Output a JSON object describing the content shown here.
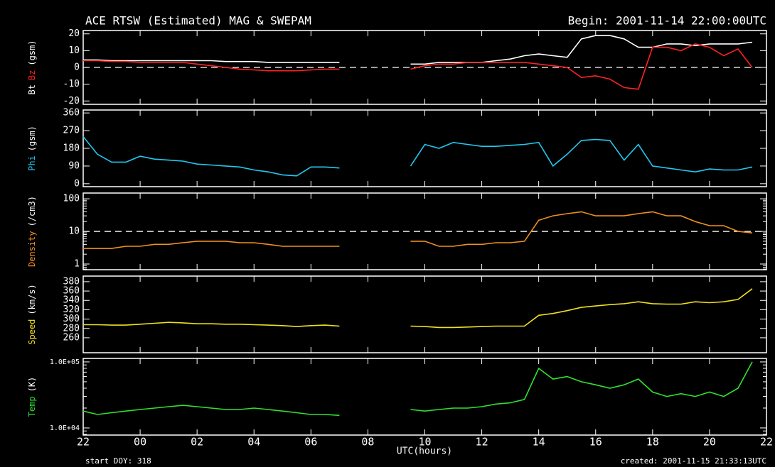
{
  "header": {
    "title": "ACE RTSW (Estimated) MAG & SWEPAM",
    "begin": "Begin: 2001-11-14 22:00:00UTC",
    "start_doy": "start DOY: 318",
    "created": "created: 2001-11-15 21:33:13UTC"
  },
  "chart_data": [
    {
      "type": "line",
      "ylabel": "(gsm)",
      "ylim": [
        -22,
        22
      ],
      "yticks": [
        -20,
        -10,
        0,
        10,
        20
      ],
      "hlines": [
        0
      ],
      "series": [
        {
          "name": "Bt",
          "color": "#ffffff",
          "values": [
            4.5,
            4.5,
            4,
            4,
            4,
            4,
            4,
            4,
            4,
            4,
            3.5,
            3.5,
            3.5,
            3,
            3,
            3,
            3,
            3,
            3,
            null,
            null,
            null,
            null,
            2,
            2,
            3,
            3,
            3,
            3,
            4,
            5,
            7,
            8,
            7,
            6,
            17,
            19,
            19,
            17,
            12,
            12,
            14,
            14,
            13,
            14,
            14,
            14,
            15
          ]
        },
        {
          "name": "Bz",
          "color": "#ff2020",
          "values": [
            4,
            4,
            3.5,
            3.5,
            3,
            3,
            3,
            3,
            2,
            1,
            0,
            -1,
            -1.5,
            -2,
            -2,
            -2,
            -1.5,
            -1,
            -1,
            null,
            null,
            null,
            null,
            -1,
            1,
            2,
            2,
            3,
            3,
            3,
            3,
            3,
            2,
            1,
            0,
            -6,
            -5,
            -7,
            -12,
            -13,
            12,
            12,
            10,
            14,
            12,
            7,
            11,
            0
          ]
        }
      ]
    },
    {
      "type": "line",
      "ylabel": "(gsm)",
      "ylim": [
        -15,
        375
      ],
      "yticks": [
        0,
        90,
        180,
        270,
        360
      ],
      "series": [
        {
          "name": "Phi",
          "color": "#22c8f0",
          "values": [
            240,
            150,
            110,
            110,
            140,
            125,
            120,
            115,
            100,
            95,
            90,
            85,
            70,
            60,
            45,
            40,
            85,
            85,
            80,
            null,
            null,
            null,
            null,
            90,
            200,
            180,
            210,
            200,
            190,
            190,
            195,
            200,
            210,
            90,
            150,
            220,
            225,
            220,
            120,
            200,
            90,
            80,
            70,
            60,
            75,
            70,
            70,
            85
          ]
        }
      ]
    },
    {
      "type": "line",
      "ylabel": "(/cm3)",
      "log": true,
      "ylim": [
        0.67,
        150
      ],
      "yticks": [
        1,
        10,
        100
      ],
      "hlines": [
        10
      ],
      "series": [
        {
          "name": "Density",
          "color": "#f09020",
          "values": [
            3,
            3,
            3,
            3.5,
            3.5,
            4,
            4,
            4.5,
            5,
            5,
            5,
            4.5,
            4.5,
            4,
            3.5,
            3.5,
            3.5,
            3.5,
            3.5,
            null,
            null,
            null,
            null,
            5,
            5,
            3.5,
            3.5,
            4,
            4,
            4.5,
            4.5,
            5,
            22,
            30,
            35,
            40,
            30,
            30,
            30,
            35,
            40,
            30,
            30,
            20,
            15,
            15,
            10,
            9
          ]
        }
      ]
    },
    {
      "type": "line",
      "ylabel": "(km/s)",
      "ylim": [
        228,
        392
      ],
      "yticks": [
        260,
        280,
        300,
        320,
        340,
        360,
        380
      ],
      "series": [
        {
          "name": "Speed",
          "color": "#f0e020",
          "values": [
            288,
            288,
            287,
            287,
            289,
            291,
            293,
            292,
            290,
            290,
            289,
            289,
            288,
            287,
            286,
            284,
            286,
            287,
            285,
            null,
            null,
            null,
            null,
            285,
            284,
            282,
            282,
            283,
            284,
            285,
            285,
            285,
            308,
            312,
            318,
            325,
            328,
            331,
            333,
            337,
            333,
            332,
            332,
            337,
            335,
            337,
            342,
            365
          ]
        }
      ]
    },
    {
      "type": "line",
      "ylabel": "(K)",
      "log": true,
      "ylim": [
        7800,
        113000
      ],
      "yticks": [
        {
          "value": 10000,
          "label": "1.0E+04"
        },
        {
          "value": 100000,
          "label": "1.0E+05"
        }
      ],
      "xlabel": "UTC(hours)",
      "xlim": [
        0,
        24
      ],
      "xticks": [
        {
          "value": 0,
          "label": "22"
        },
        {
          "value": 2,
          "label": "00"
        },
        {
          "value": 4,
          "label": "02"
        },
        {
          "value": 6,
          "label": "04"
        },
        {
          "value": 8,
          "label": "06"
        },
        {
          "value": 10,
          "label": "08"
        },
        {
          "value": 12,
          "label": "10"
        },
        {
          "value": 14,
          "label": "12"
        },
        {
          "value": 16,
          "label": "14"
        },
        {
          "value": 18,
          "label": "16"
        },
        {
          "value": 20,
          "label": "18"
        },
        {
          "value": 22,
          "label": "20"
        },
        {
          "value": 24,
          "label": "22"
        }
      ],
      "x": [
        0,
        0.5,
        1,
        1.5,
        2,
        2.5,
        3,
        3.5,
        4,
        4.5,
        5,
        5.5,
        6,
        6.5,
        7,
        7.5,
        8,
        8.5,
        9,
        9.5,
        10,
        10.5,
        11,
        11.5,
        12,
        12.5,
        13,
        13.5,
        14,
        14.5,
        15,
        15.5,
        16,
        16.5,
        17,
        17.5,
        18,
        18.5,
        19,
        19.5,
        20,
        20.5,
        21,
        21.5,
        22,
        22.5,
        23,
        23.5
      ],
      "series": [
        {
          "name": "Temp",
          "color": "#30e030",
          "values": [
            18000,
            16000,
            17000,
            18000,
            19000,
            20000,
            21000,
            22000,
            21000,
            20000,
            19000,
            19000,
            20000,
            19000,
            18000,
            17000,
            16000,
            16000,
            15500,
            null,
            null,
            null,
            null,
            19000,
            18000,
            19000,
            20000,
            20000,
            21000,
            23000,
            24000,
            27000,
            80000,
            55000,
            60000,
            50000,
            45000,
            40000,
            45000,
            55000,
            35000,
            30000,
            33000,
            30000,
            35000,
            30000,
            40000,
            100000
          ]
        }
      ]
    }
  ]
}
